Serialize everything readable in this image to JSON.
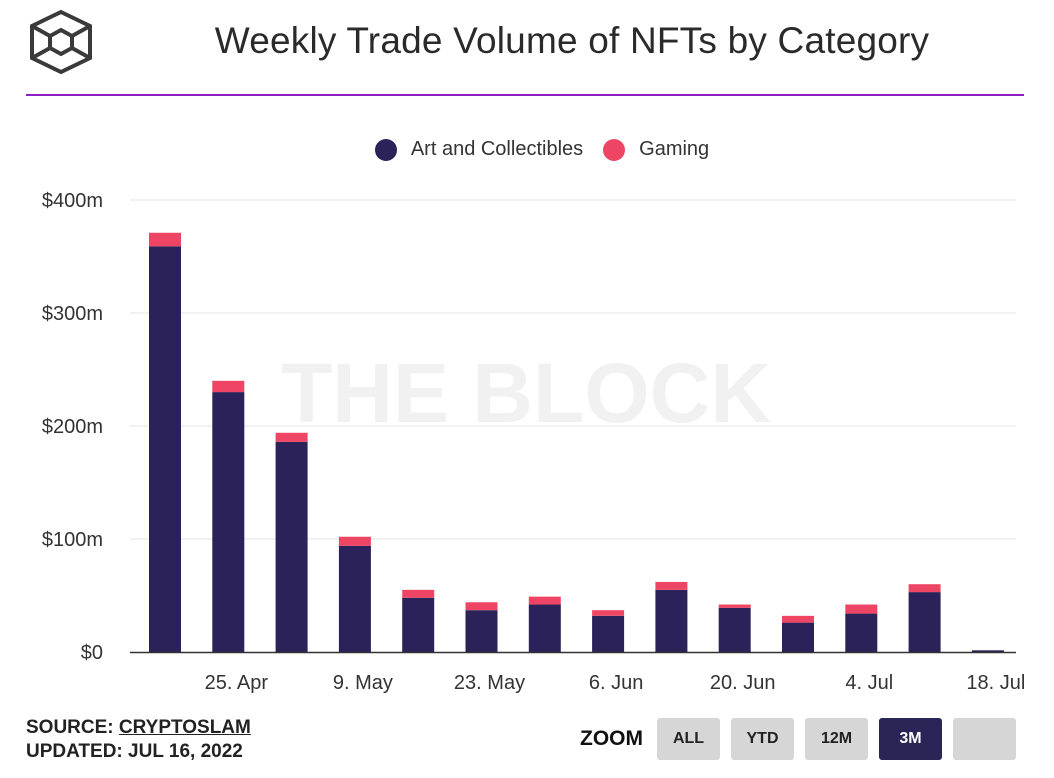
{
  "header": {
    "title": "Weekly Trade Volume of NFTs by Category",
    "logo_icon": "the-block-cube-logo",
    "rule_color": "#8e1fc4"
  },
  "watermark": "THE BLOCK",
  "chart_data": {
    "type": "bar",
    "stacked": true,
    "title": "Weekly Trade Volume of NFTs by Category",
    "xlabel": "",
    "ylabel": "",
    "ylim": [
      0,
      400
    ],
    "y_ticks": [
      "$0",
      "$100m",
      "$200m",
      "$300m",
      "$400m"
    ],
    "y_tick_values": [
      0,
      100,
      200,
      300,
      400
    ],
    "x_tick_labels": [
      "25. Apr",
      "9. May",
      "23. May",
      "6. Jun",
      "20. Jun",
      "4. Jul",
      "18. Jul"
    ],
    "x_tick_index": [
      1,
      3,
      5,
      7,
      9,
      11,
      13
    ],
    "grid": true,
    "legend_position": "top",
    "series": [
      {
        "name": "Art and Collectibles",
        "color": "#2a2259",
        "values": [
          359,
          230,
          186,
          94,
          48,
          37,
          42,
          32,
          55,
          39,
          26,
          34,
          53,
          1.5
        ]
      },
      {
        "name": "Gaming",
        "color": "#ef4565",
        "values": [
          12,
          10,
          8,
          8,
          7,
          7,
          7,
          5,
          7,
          3,
          6,
          8,
          7,
          0
        ]
      }
    ]
  },
  "footer": {
    "source_label": "SOURCE:",
    "source_name": "CRYPTOSLAM",
    "updated_label": "UPDATED:",
    "updated_date": "JUL 16, 2022"
  },
  "zoom": {
    "label": "ZOOM",
    "buttons": [
      "ALL",
      "YTD",
      "12M",
      "3M",
      ""
    ],
    "active": "3M"
  }
}
